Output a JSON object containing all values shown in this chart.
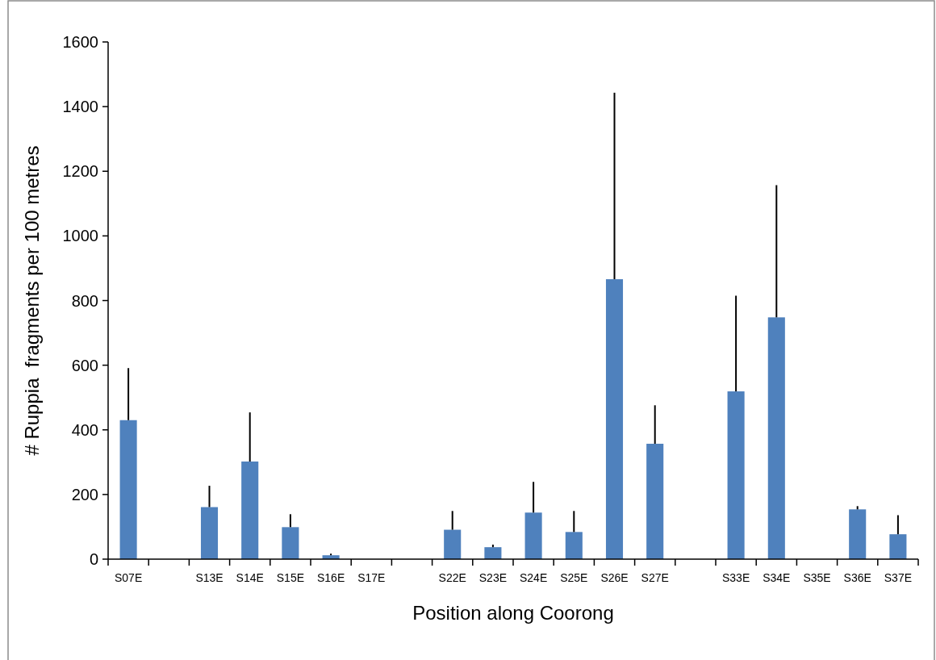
{
  "chart_data": {
    "type": "bar",
    "xlabel": "Position along Coorong",
    "ylabel": "# Ruppia  fragments per 100 metres",
    "categories": [
      "S07E",
      null,
      "S13E",
      "S14E",
      "S15E",
      "S16E",
      "S17E",
      null,
      "S22E",
      "S23E",
      "S24E",
      "S25E",
      "S26E",
      "S27E",
      null,
      "S33E",
      "S34E",
      "S35E",
      "S36E",
      "S37E"
    ],
    "values": [
      430,
      null,
      161,
      302,
      99,
      12,
      null,
      null,
      91,
      37,
      144,
      84,
      866,
      357,
      null,
      519,
      748,
      null,
      154,
      77
    ],
    "errors": [
      [
        430,
        591
      ],
      null,
      [
        161,
        227
      ],
      [
        302,
        454
      ],
      [
        99,
        139
      ],
      [
        12,
        17
      ],
      null,
      null,
      [
        91,
        149
      ],
      [
        37,
        45
      ],
      [
        144,
        239
      ],
      [
        84,
        149
      ],
      [
        866,
        1443
      ],
      [
        357,
        476
      ],
      null,
      [
        519,
        815
      ],
      [
        748,
        1157
      ],
      null,
      [
        154,
        164
      ],
      [
        77,
        136
      ]
    ],
    "color": "#4f81bd",
    "ylim": [
      0,
      1600
    ],
    "yticks": [
      0,
      200,
      400,
      600,
      800,
      1000,
      1200,
      1400,
      1600
    ],
    "grid": false
  }
}
